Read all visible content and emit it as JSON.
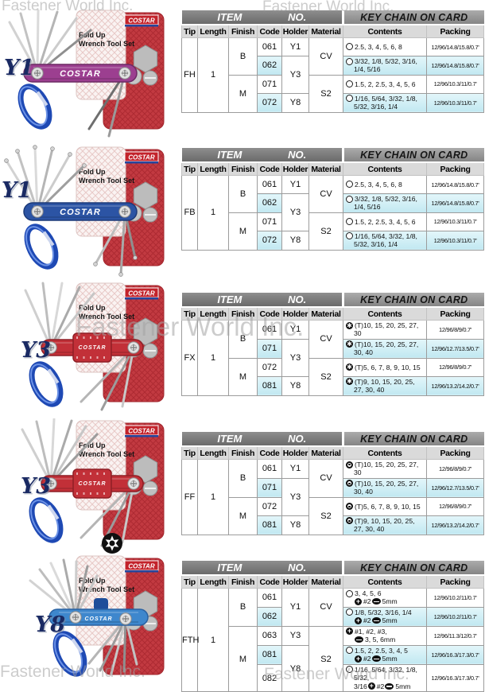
{
  "watermark": {
    "text": "Fastener World Inc."
  },
  "brand": {
    "logo": "COSTAR",
    "card_line1": "Fold Up",
    "card_line2": "Wrench Tool Set",
    "tool_label": "COSTAR"
  },
  "colors": {
    "highlight": "#c1e8f1",
    "band_item_bg": "#6a6a6a",
    "band_key_bg": "#858585",
    "header_bg": "#dadada",
    "card_red": "#c23a41",
    "carabiner": "#1e49b4",
    "label_navy": "#1a2a63"
  },
  "header": {
    "item": "ITEM",
    "no": "NO.",
    "keychain": "KEY CHAIN ON CARD",
    "columns": [
      "Tip",
      "Length",
      "Finish",
      "Code",
      "Holder",
      "Material",
      "Contents",
      "Packing"
    ]
  },
  "products": [
    {
      "label": "Y1",
      "body": "#9c3f90",
      "body_dark": "#6d2a64"
    },
    {
      "label": "Y1",
      "body": "#2c54a4",
      "body_dark": "#1c3a78"
    },
    {
      "label": "Y3",
      "body": "#c23038",
      "body_dark": "#8f1f26"
    },
    {
      "label": "Y3",
      "body": "#c23038",
      "body_dark": "#8f1f26"
    },
    {
      "label": "Y8",
      "body": "#3e87cd",
      "body_dark": "#2a62a2"
    }
  ],
  "tables": [
    {
      "tip": "FH",
      "length": "1",
      "finish": [
        {
          "t": "B",
          "s": 2
        },
        {
          "t": "M",
          "s": 2
        }
      ],
      "codes": [
        {
          "t": "061"
        },
        {
          "t": "062",
          "hl": true
        },
        {
          "t": "071"
        },
        {
          "t": "072",
          "hl": true
        }
      ],
      "holders": [
        {
          "t": "Y1",
          "s": 1
        },
        {
          "t": "Y3",
          "s": 2
        },
        {
          "t": "Y8",
          "s": 1
        }
      ],
      "materials": [
        {
          "t": "CV",
          "s": 2
        },
        {
          "t": "S2",
          "s": 2
        }
      ],
      "rows": [
        {
          "hl": false,
          "content": [
            {
              "i": "hex"
            },
            {
              "t": "2.5, 3, 4, 5, 6, 8"
            }
          ],
          "packing": "12/96/14.8/15.8/0.7'"
        },
        {
          "hl": true,
          "content": [
            {
              "i": "hex"
            },
            {
              "t": "3/32, 1/8, 5/32, 3/16, 1/4, 5/16"
            }
          ],
          "packing": "12/96/14.8/15.8/0.7'"
        },
        {
          "hl": false,
          "content": [
            {
              "i": "hex"
            },
            {
              "t": "1.5, 2, 2.5, 3, 4, 5, 6"
            }
          ],
          "packing": "12/96/10.3/11/0.7'"
        },
        {
          "hl": true,
          "content": [
            {
              "i": "hex"
            },
            {
              "t": "1/16, 5/64, 3/32, 1/8, 5/32, 3/16, 1/4"
            }
          ],
          "packing": "12/96/10.3/11/0.7'"
        }
      ]
    },
    {
      "tip": "FB",
      "length": "1",
      "finish": [
        {
          "t": "B",
          "s": 2
        },
        {
          "t": "M",
          "s": 2
        }
      ],
      "codes": [
        {
          "t": "061"
        },
        {
          "t": "062",
          "hl": true
        },
        {
          "t": "071"
        },
        {
          "t": "072",
          "hl": true
        }
      ],
      "holders": [
        {
          "t": "Y1",
          "s": 1
        },
        {
          "t": "Y3",
          "s": 2
        },
        {
          "t": "Y8",
          "s": 1
        }
      ],
      "materials": [
        {
          "t": "CV",
          "s": 2
        },
        {
          "t": "S2",
          "s": 2
        }
      ],
      "rows": [
        {
          "hl": false,
          "content": [
            {
              "i": "hex"
            },
            {
              "t": "2.5, 3, 4, 5, 6, 8"
            }
          ],
          "packing": "12/96/14.8/15.8/0.7'"
        },
        {
          "hl": true,
          "content": [
            {
              "i": "hex"
            },
            {
              "t": "3/32, 1/8, 5/32, 3/16, 1/4, 5/16"
            }
          ],
          "packing": "12/96/14.8/15.8/0.7'"
        },
        {
          "hl": false,
          "content": [
            {
              "i": "hex"
            },
            {
              "t": "1.5, 2, 2.5, 3, 4, 5, 6"
            }
          ],
          "packing": "12/96/10.3/11/0.7'"
        },
        {
          "hl": true,
          "content": [
            {
              "i": "hex"
            },
            {
              "t": "1/16, 5/64, 3/32, 1/8, 5/32, 3/16, 1/4"
            }
          ],
          "packing": "12/96/10.3/11/0.7'"
        }
      ]
    },
    {
      "tip": "FX",
      "length": "1",
      "finish": [
        {
          "t": "B",
          "s": 2
        },
        {
          "t": "M",
          "s": 2
        }
      ],
      "codes": [
        {
          "t": "061"
        },
        {
          "t": "071",
          "hl": true
        },
        {
          "t": "072"
        },
        {
          "t": "081",
          "hl": true
        }
      ],
      "holders": [
        {
          "t": "Y1",
          "s": 1
        },
        {
          "t": "Y3",
          "s": 2
        },
        {
          "t": "Y8",
          "s": 1
        }
      ],
      "materials": [
        {
          "t": "CV",
          "s": 2
        },
        {
          "t": "S2",
          "s": 2
        }
      ],
      "rows": [
        {
          "hl": false,
          "content": [
            {
              "i": "torx"
            },
            {
              "t": "(T)10, 15, 20, 25, 27, 30"
            }
          ],
          "packing": "12/96/8/9/0.7'"
        },
        {
          "hl": true,
          "content": [
            {
              "i": "torx"
            },
            {
              "t": "(T)10, 15, 20, 25, 27, 30, 40"
            }
          ],
          "packing": "12/96/12.7/13.5/0.7'"
        },
        {
          "hl": false,
          "content": [
            {
              "i": "torx"
            },
            {
              "t": "(T)5, 6, 7, 8, 9, 10, 15"
            }
          ],
          "packing": "12/96/8/9/0.7'"
        },
        {
          "hl": true,
          "content": [
            {
              "i": "torx"
            },
            {
              "t": "(T)9, 10, 15, 20, 25, 27, 30, 40"
            }
          ],
          "packing": "12/96/13.2/14.2/0.7'"
        }
      ]
    },
    {
      "tip": "FF",
      "length": "1",
      "finish": [
        {
          "t": "B",
          "s": 2
        },
        {
          "t": "M",
          "s": 2
        }
      ],
      "codes": [
        {
          "t": "061"
        },
        {
          "t": "071",
          "hl": true
        },
        {
          "t": "072"
        },
        {
          "t": "081",
          "hl": true
        }
      ],
      "holders": [
        {
          "t": "Y1",
          "s": 1
        },
        {
          "t": "Y3",
          "s": 2
        },
        {
          "t": "Y8",
          "s": 1
        }
      ],
      "materials": [
        {
          "t": "CV",
          "s": 2
        },
        {
          "t": "S2",
          "s": 2
        }
      ],
      "rows": [
        {
          "hl": false,
          "content": [
            {
              "i": "tamper"
            },
            {
              "t": "(T)10, 15, 20, 25, 27, 30"
            }
          ],
          "packing": "12/96/8/9/0.7'"
        },
        {
          "hl": true,
          "content": [
            {
              "i": "tamper"
            },
            {
              "t": "(T)10, 15, 20, 25, 27, 30, 40"
            }
          ],
          "packing": "12/96/12.7/13.5/0.7'"
        },
        {
          "hl": false,
          "content": [
            {
              "i": "tamper"
            },
            {
              "t": "(T)5, 6, 7, 8, 9, 10, 15"
            }
          ],
          "packing": "12/96/8/9/0.7'"
        },
        {
          "hl": true,
          "content": [
            {
              "i": "tamper"
            },
            {
              "t": "(T)9, 10, 15, 20, 25, 27, 30, 40"
            }
          ],
          "packing": "12/96/13.2/14.2/0.7'"
        }
      ]
    },
    {
      "tip": "FTH",
      "length": "1",
      "finish": [
        {
          "t": "B",
          "s": 2
        },
        {
          "t": "M",
          "s": 3
        }
      ],
      "codes": [
        {
          "t": "061"
        },
        {
          "t": "062",
          "hl": true
        },
        {
          "t": "063"
        },
        {
          "t": "081",
          "hl": true
        },
        {
          "t": "082"
        }
      ],
      "holders": [
        {
          "t": "Y1",
          "s": 2
        },
        {
          "t": "Y3",
          "s": 1
        },
        {
          "t": "Y8",
          "s": 2
        }
      ],
      "materials": [
        {
          "t": "CV",
          "s": 2
        },
        {
          "t": "S2",
          "s": 3
        }
      ],
      "rows": [
        {
          "hl": false,
          "content": [
            {
              "i": "hex"
            },
            {
              "t": "3, 4, 5, 6"
            },
            {
              "br": true
            },
            {
              "i": "phillips"
            },
            {
              "t": "#2"
            },
            {
              "i": "slot"
            },
            {
              "t": "5mm"
            }
          ],
          "packing": "12/96/10.2/11/0.7'"
        },
        {
          "hl": true,
          "content": [
            {
              "i": "hex"
            },
            {
              "t": "1/8, 5/32, 3/16, 1/4"
            },
            {
              "br": true
            },
            {
              "i": "phillips"
            },
            {
              "t": "#2"
            },
            {
              "i": "slot"
            },
            {
              "t": "5mm"
            }
          ],
          "packing": "12/96/10.2/11/0.7'"
        },
        {
          "hl": false,
          "content": [
            {
              "i": "phillips"
            },
            {
              "t": "#1, #2, #3,"
            },
            {
              "br": true
            },
            {
              "i": "slot"
            },
            {
              "t": "3, 5, 6mm"
            }
          ],
          "packing": "12/96/11.3/12/0.7'"
        },
        {
          "hl": true,
          "content": [
            {
              "i": "hex"
            },
            {
              "t": "1.5, 2, 2.5, 3, 4, 5"
            },
            {
              "br": true
            },
            {
              "i": "phillips"
            },
            {
              "t": "#2"
            },
            {
              "i": "slot"
            },
            {
              "t": "5mm"
            }
          ],
          "packing": "12/96/16.3/17.3/0.7'"
        },
        {
          "hl": false,
          "content": [
            {
              "i": "hex"
            },
            {
              "t": "1/16, 5/64, 3/32, 1/8, 5/32,"
            },
            {
              "br": true
            },
            {
              "t": "3/16"
            },
            {
              "i": "phillips"
            },
            {
              "t": "#2"
            },
            {
              "i": "slot"
            },
            {
              "t": "5mm"
            }
          ],
          "packing": "12/96/16.3/17.3/0.7'"
        }
      ]
    }
  ]
}
